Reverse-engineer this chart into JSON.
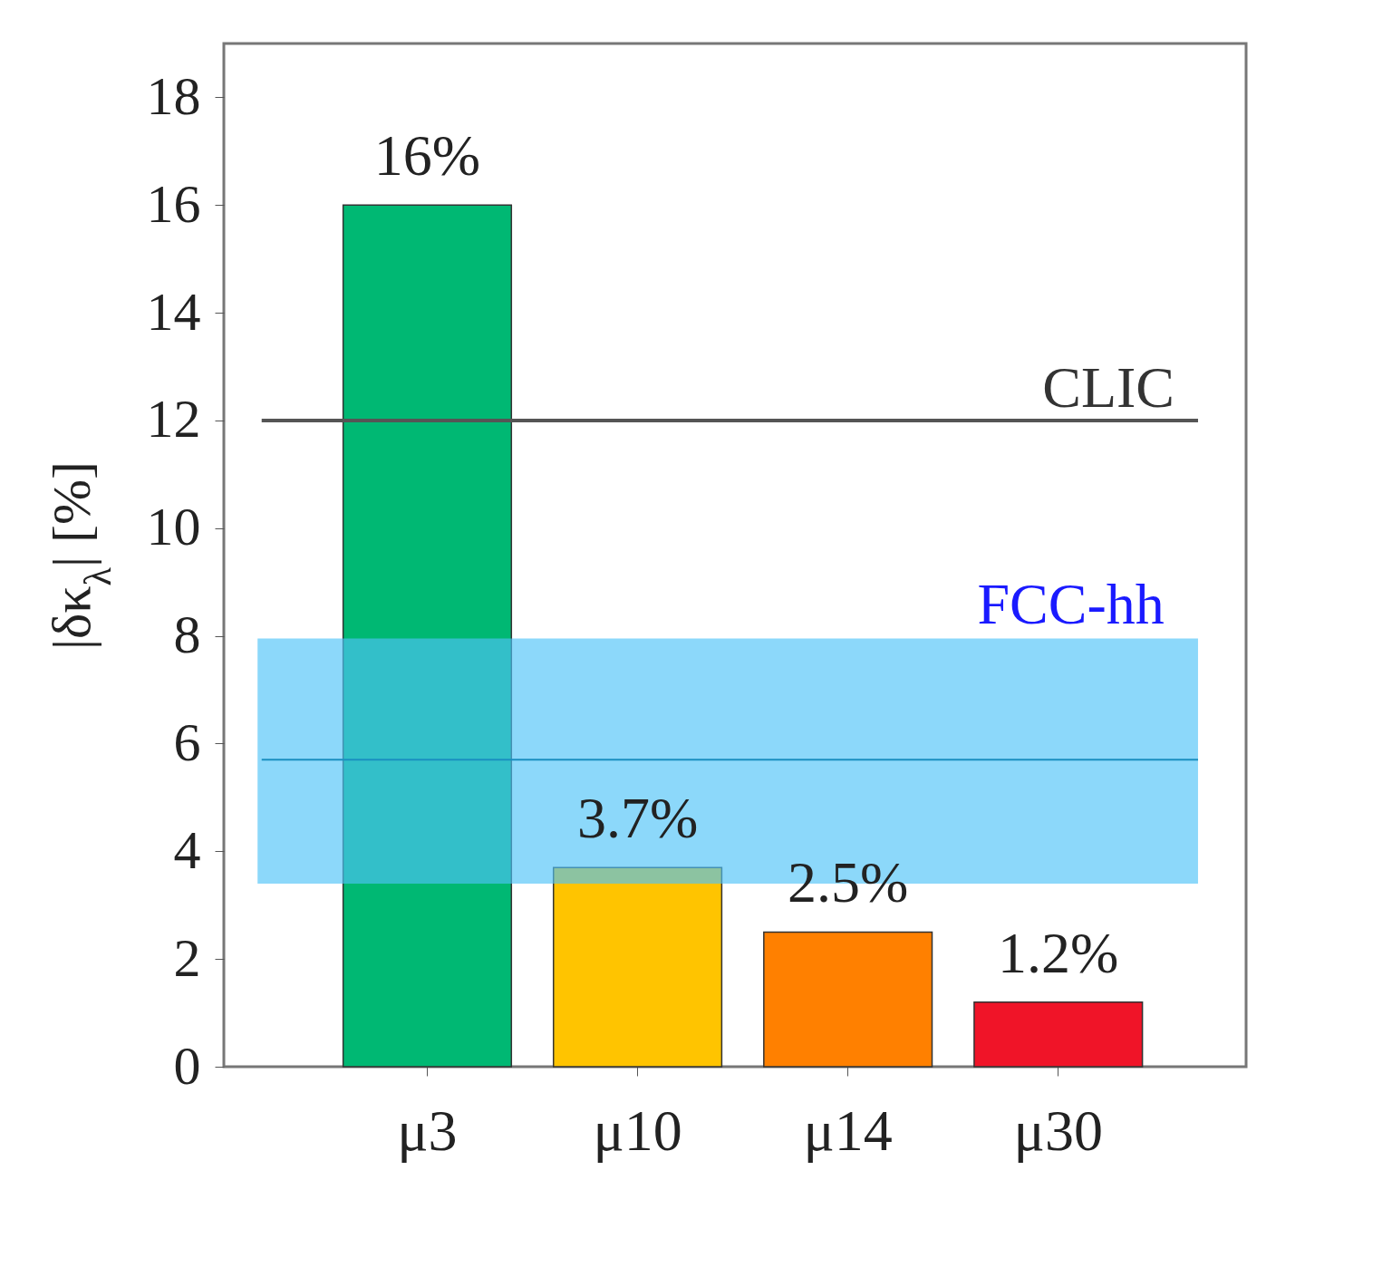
{
  "chart_data": {
    "type": "bar",
    "ylabel": "|δκ$_{λ}$| [%]",
    "categories": [
      "μ3",
      "μ10",
      "μ14",
      "μ30"
    ],
    "values": [
      16,
      3.7,
      2.5,
      1.2
    ],
    "colors": [
      "#00b873",
      "#ffc400",
      "#ff8000",
      "#f01428"
    ],
    "value_labels": [
      "16%",
      "3.7%",
      "2.5%",
      "1.2%"
    ],
    "ylim": [
      0,
      19
    ],
    "yticks": [
      0,
      2,
      4,
      6,
      8,
      10,
      12,
      14,
      16,
      18
    ],
    "ref_lines": [
      {
        "axis": "y",
        "value": 12,
        "label": "CLIC",
        "color": "#555555"
      },
      {
        "axis": "y",
        "value": 5.7,
        "label": null,
        "color": "#1a8fc0"
      }
    ],
    "bands": [
      {
        "axis": "y",
        "from": 3.4,
        "to": 7.95,
        "label": "FCC-hh",
        "color": "#4fc3f7"
      }
    ]
  }
}
